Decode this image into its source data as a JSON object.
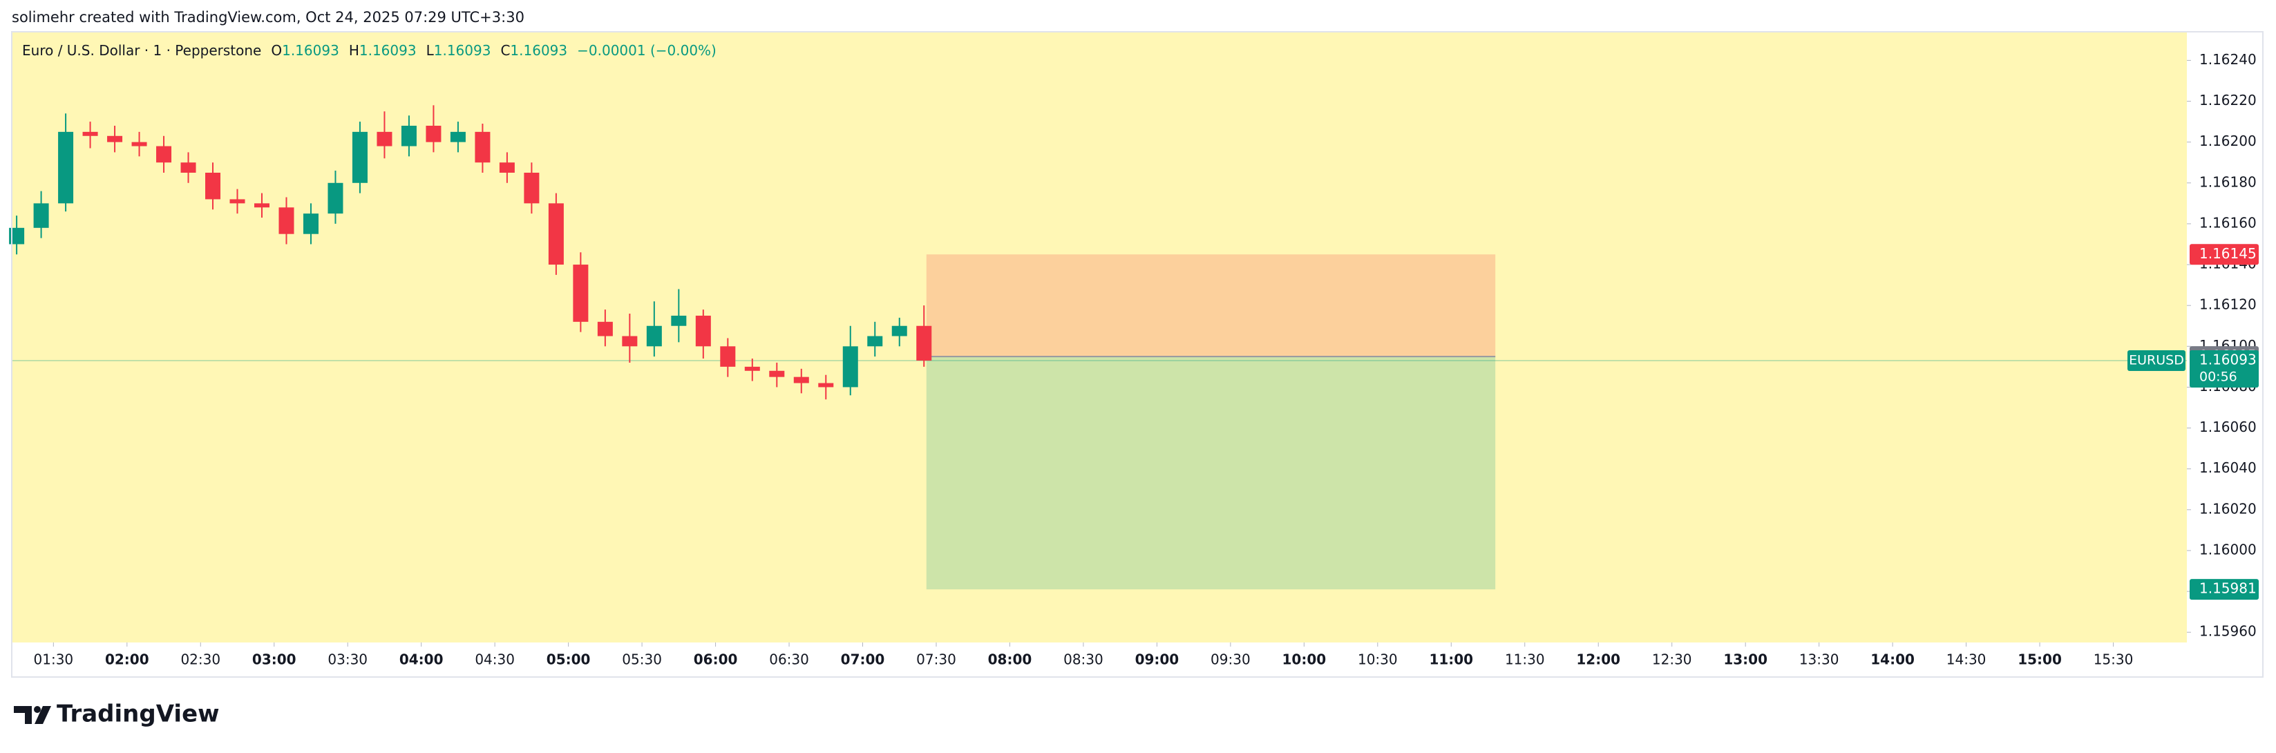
{
  "header": "solimehr created with TradingView.com, Oct 24, 2025 07:29 UTC+3:30",
  "brand": "TradingView",
  "chart_data": {
    "type": "candlestick",
    "title": "Euro / U.S. Dollar · 1 · Pepperstone",
    "legend": {
      "open_label": "O",
      "open": 1.16093,
      "high_label": "H",
      "high": 1.16093,
      "low_label": "L",
      "low": 1.16093,
      "close_label": "C",
      "close": 1.16093,
      "change": "−0.00001 (−0.00%)"
    },
    "up_color": "#089981",
    "down_color": "#f23645",
    "background": "#fff7b5",
    "x": [
      75,
      85,
      95,
      105,
      115,
      125,
      135,
      145,
      155,
      165,
      175,
      185,
      195,
      205,
      215,
      225,
      235,
      245,
      255,
      265,
      275,
      285,
      295,
      305,
      315,
      325,
      335,
      345,
      355,
      365,
      375,
      385,
      395,
      405,
      415,
      425,
      435,
      445
    ],
    "open": [
      1.1615,
      1.16158,
      1.1617,
      1.16205,
      1.16203,
      1.162,
      1.16198,
      1.1619,
      1.16185,
      1.16172,
      1.1617,
      1.16168,
      1.16155,
      1.16165,
      1.1618,
      1.16205,
      1.16198,
      1.16208,
      1.162,
      1.16205,
      1.1619,
      1.16185,
      1.1617,
      1.1614,
      1.16112,
      1.16105,
      1.161,
      1.1611,
      1.16115,
      1.161,
      1.1609,
      1.16088,
      1.16085,
      1.16082,
      1.1608,
      1.161,
      1.16105,
      1.1611
    ],
    "high": [
      1.16164,
      1.16176,
      1.16214,
      1.1621,
      1.16208,
      1.16205,
      1.16203,
      1.16195,
      1.1619,
      1.16177,
      1.16175,
      1.16173,
      1.1617,
      1.16186,
      1.1621,
      1.16215,
      1.16213,
      1.16218,
      1.1621,
      1.16209,
      1.16195,
      1.1619,
      1.16175,
      1.16146,
      1.16118,
      1.16116,
      1.16122,
      1.16128,
      1.16118,
      1.16104,
      1.16094,
      1.16092,
      1.16089,
      1.16086,
      1.1611,
      1.16112,
      1.16114,
      1.1612
    ],
    "low": [
      1.16145,
      1.16153,
      1.16166,
      1.16197,
      1.16195,
      1.16193,
      1.16185,
      1.1618,
      1.16167,
      1.16165,
      1.16163,
      1.1615,
      1.1615,
      1.1616,
      1.16175,
      1.16192,
      1.16193,
      1.16195,
      1.16195,
      1.16185,
      1.1618,
      1.16165,
      1.16135,
      1.16107,
      1.161,
      1.16092,
      1.16095,
      1.16102,
      1.16094,
      1.16085,
      1.16083,
      1.1608,
      1.16077,
      1.16074,
      1.16076,
      1.16095,
      1.161,
      1.1609
    ],
    "close": [
      1.16158,
      1.1617,
      1.16205,
      1.16203,
      1.162,
      1.16198,
      1.1619,
      1.16185,
      1.16172,
      1.1617,
      1.16168,
      1.16155,
      1.16165,
      1.1618,
      1.16205,
      1.16198,
      1.16208,
      1.162,
      1.16205,
      1.1619,
      1.16185,
      1.1617,
      1.1614,
      1.16112,
      1.16105,
      1.161,
      1.1611,
      1.16115,
      1.161,
      1.1609,
      1.16088,
      1.16085,
      1.16082,
      1.1608,
      1.161,
      1.16105,
      1.1611,
      1.16093
    ],
    "xlim": [
      73,
      960
    ],
    "xticks": [
      {
        "value": 90,
        "label": "01:30"
      },
      {
        "value": 120,
        "label": "02:00"
      },
      {
        "value": 150,
        "label": "02:30"
      },
      {
        "value": 180,
        "label": "03:00"
      },
      {
        "value": 210,
        "label": "03:30"
      },
      {
        "value": 240,
        "label": "04:00"
      },
      {
        "value": 270,
        "label": "04:30"
      },
      {
        "value": 300,
        "label": "05:00"
      },
      {
        "value": 330,
        "label": "05:30"
      },
      {
        "value": 360,
        "label": "06:00"
      },
      {
        "value": 390,
        "label": "06:30"
      },
      {
        "value": 420,
        "label": "07:00"
      },
      {
        "value": 450,
        "label": "07:30"
      },
      {
        "value": 480,
        "label": "08:00"
      },
      {
        "value": 510,
        "label": "08:30"
      },
      {
        "value": 540,
        "label": "09:00"
      },
      {
        "value": 570,
        "label": "09:30"
      },
      {
        "value": 600,
        "label": "10:00"
      },
      {
        "value": 630,
        "label": "10:30"
      },
      {
        "value": 660,
        "label": "11:00"
      },
      {
        "value": 690,
        "label": "11:30"
      },
      {
        "value": 720,
        "label": "12:00"
      },
      {
        "value": 750,
        "label": "12:30"
      },
      {
        "value": 780,
        "label": "13:00"
      },
      {
        "value": 810,
        "label": "13:30"
      },
      {
        "value": 840,
        "label": "14:00"
      },
      {
        "value": 870,
        "label": "14:30"
      },
      {
        "value": 900,
        "label": "15:00"
      },
      {
        "value": 930,
        "label": "15:30"
      }
    ],
    "ylim": [
      1.15955,
      1.16254
    ],
    "yticks": [
      {
        "value": 1.1596,
        "label": "1.15960"
      },
      {
        "value": 1.1598,
        "label": "1.15980"
      },
      {
        "value": 1.16,
        "label": "1.16000"
      },
      {
        "value": 1.1602,
        "label": "1.16020"
      },
      {
        "value": 1.1604,
        "label": "1.16040"
      },
      {
        "value": 1.1606,
        "label": "1.16060"
      },
      {
        "value": 1.1608,
        "label": "1.16080"
      },
      {
        "value": 1.161,
        "label": "1.16100"
      },
      {
        "value": 1.1612,
        "label": "1.16120"
      },
      {
        "value": 1.1614,
        "label": "1.16140"
      },
      {
        "value": 1.1616,
        "label": "1.16160"
      },
      {
        "value": 1.1618,
        "label": "1.16180"
      },
      {
        "value": 1.162,
        "label": "1.16200"
      },
      {
        "value": 1.1622,
        "label": "1.16220"
      },
      {
        "value": 1.1624,
        "label": "1.16240"
      }
    ],
    "position": {
      "start": 446,
      "end": 678,
      "entry": 1.16095,
      "stop": 1.16145,
      "target": 1.15981,
      "stop_color": "#fcd09c",
      "target_color": "#cde4a9"
    },
    "price_labels": [
      {
        "value": 1.16145,
        "color": "#f23645"
      },
      {
        "value": 1.16095,
        "color": "#787b86"
      },
      {
        "value": 1.16093,
        "color": "#089981",
        "symbol": "EURUSD",
        "countdown": "00:56"
      },
      {
        "value": 1.15981,
        "color": "#089981"
      }
    ]
  }
}
